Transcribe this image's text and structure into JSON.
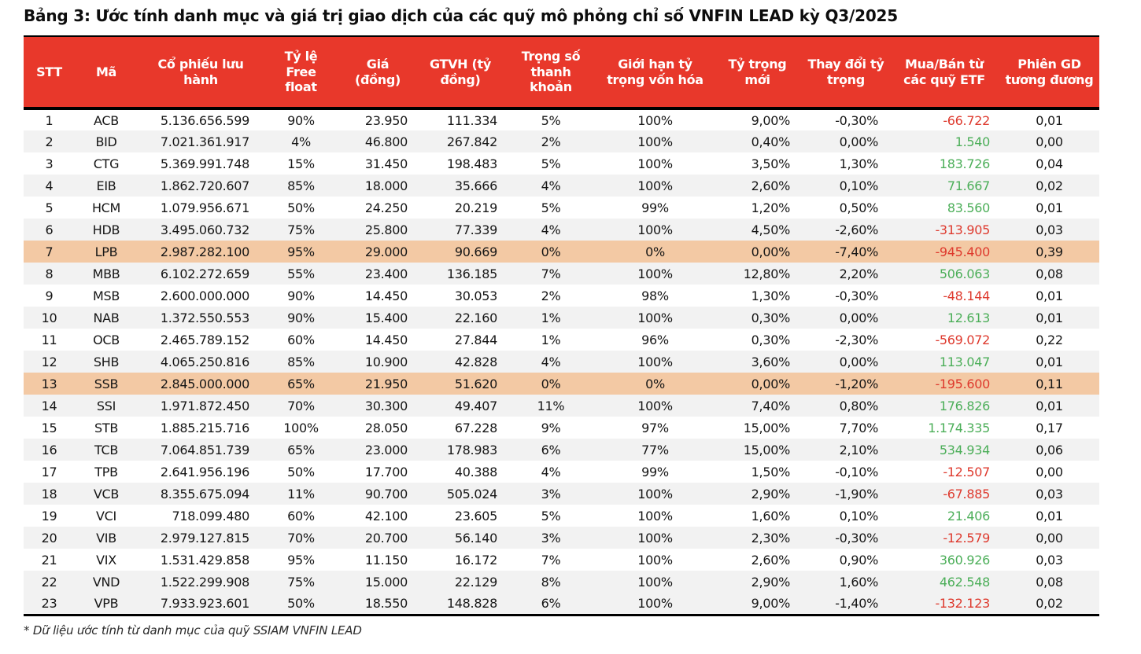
{
  "title": "Bảng 3: Ước tính danh mục và giá trị giao dịch của các quỹ mô phỏng chỉ số VNFIN LEAD kỳ Q3/2025",
  "footnote": "* Dữ liệu ước tính từ danh mục của quỹ SSIAM VNFIN LEAD",
  "colors": {
    "header_bg": "#E8382B",
    "header_text": "#FFFFFF",
    "row_alt_bg": "#F2F2F2",
    "highlight_row_bg": "#F3C9A4",
    "positive_flow": "#4BAE58",
    "negative_flow": "#DE392D",
    "body_text": "#161616"
  },
  "table": {
    "columns": [
      {
        "key": "stt",
        "label": "STT"
      },
      {
        "key": "ma",
        "label": "Mã"
      },
      {
        "key": "shares",
        "label": "Cổ phiếu lưu hành"
      },
      {
        "key": "free_float",
        "label": "Tỷ lệ Free float"
      },
      {
        "key": "price",
        "label": "Giá (đồng)"
      },
      {
        "key": "mcap",
        "label": "GTVH (tỷ đồng)"
      },
      {
        "key": "liquidity_weight",
        "label": "Trọng số thanh khoản"
      },
      {
        "key": "cap_limit",
        "label": "Giới hạn tỷ trọng vốn hóa"
      },
      {
        "key": "new_weight",
        "label": "Tỷ trọng mới"
      },
      {
        "key": "weight_change",
        "label": "Thay đổi tỷ trọng"
      },
      {
        "key": "etf_flow",
        "label": "Mua/Bán từ các quỹ ETF"
      },
      {
        "key": "sessions",
        "label": "Phiên GD tương đương"
      }
    ],
    "highlight_stt": [
      "7",
      "13"
    ],
    "rows": [
      [
        "1",
        "ACB",
        "5.136.656.599",
        "90%",
        "23.950",
        "111.334",
        "5%",
        "100%",
        "9,00%",
        "-0,30%",
        "-66.722",
        "0,01"
      ],
      [
        "2",
        "BID",
        "7.021.361.917",
        "4%",
        "46.800",
        "267.842",
        "2%",
        "100%",
        "0,40%",
        "0,00%",
        "1.540",
        "0,00"
      ],
      [
        "3",
        "CTG",
        "5.369.991.748",
        "15%",
        "31.450",
        "198.483",
        "5%",
        "100%",
        "3,50%",
        "1,30%",
        "183.726",
        "0,04"
      ],
      [
        "4",
        "EIB",
        "1.862.720.607",
        "85%",
        "18.000",
        "35.666",
        "4%",
        "100%",
        "2,60%",
        "0,10%",
        "71.667",
        "0,02"
      ],
      [
        "5",
        "HCM",
        "1.079.956.671",
        "50%",
        "24.250",
        "20.219",
        "5%",
        "99%",
        "1,20%",
        "0,50%",
        "83.560",
        "0,01"
      ],
      [
        "6",
        "HDB",
        "3.495.060.732",
        "75%",
        "25.800",
        "77.339",
        "4%",
        "100%",
        "4,50%",
        "-2,60%",
        "-313.905",
        "0,03"
      ],
      [
        "7",
        "LPB",
        "2.987.282.100",
        "95%",
        "29.000",
        "90.669",
        "0%",
        "0%",
        "0,00%",
        "-7,40%",
        "-945.400",
        "0,39"
      ],
      [
        "8",
        "MBB",
        "6.102.272.659",
        "55%",
        "23.400",
        "136.185",
        "7%",
        "100%",
        "12,80%",
        "2,20%",
        "506.063",
        "0,08"
      ],
      [
        "9",
        "MSB",
        "2.600.000.000",
        "90%",
        "14.450",
        "30.053",
        "2%",
        "98%",
        "1,30%",
        "-0,30%",
        "-48.144",
        "0,01"
      ],
      [
        "10",
        "NAB",
        "1.372.550.553",
        "90%",
        "15.400",
        "22.160",
        "1%",
        "100%",
        "0,30%",
        "0,00%",
        "12.613",
        "0,01"
      ],
      [
        "11",
        "OCB",
        "2.465.789.152",
        "60%",
        "14.450",
        "27.844",
        "1%",
        "96%",
        "0,30%",
        "-2,30%",
        "-569.072",
        "0,22"
      ],
      [
        "12",
        "SHB",
        "4.065.250.816",
        "85%",
        "10.900",
        "42.828",
        "4%",
        "100%",
        "3,60%",
        "0,00%",
        "113.047",
        "0,01"
      ],
      [
        "13",
        "SSB",
        "2.845.000.000",
        "65%",
        "21.950",
        "51.620",
        "0%",
        "0%",
        "0,00%",
        "-1,20%",
        "-195.600",
        "0,11"
      ],
      [
        "14",
        "SSI",
        "1.971.872.450",
        "70%",
        "30.300",
        "49.407",
        "11%",
        "100%",
        "7,40%",
        "0,80%",
        "176.826",
        "0,01"
      ],
      [
        "15",
        "STB",
        "1.885.215.716",
        "100%",
        "28.050",
        "67.228",
        "9%",
        "97%",
        "15,00%",
        "7,70%",
        "1.174.335",
        "0,17"
      ],
      [
        "16",
        "TCB",
        "7.064.851.739",
        "65%",
        "23.000",
        "178.983",
        "6%",
        "77%",
        "15,00%",
        "2,10%",
        "534.934",
        "0,06"
      ],
      [
        "17",
        "TPB",
        "2.641.956.196",
        "50%",
        "17.700",
        "40.388",
        "4%",
        "99%",
        "1,50%",
        "-0,10%",
        "-12.507",
        "0,00"
      ],
      [
        "18",
        "VCB",
        "8.355.675.094",
        "11%",
        "90.700",
        "505.024",
        "3%",
        "100%",
        "2,90%",
        "-1,90%",
        "-67.885",
        "0,03"
      ],
      [
        "19",
        "VCI",
        "718.099.480",
        "60%",
        "42.100",
        "23.605",
        "5%",
        "100%",
        "1,60%",
        "0,10%",
        "21.406",
        "0,01"
      ],
      [
        "20",
        "VIB",
        "2.979.127.815",
        "70%",
        "20.700",
        "56.140",
        "3%",
        "100%",
        "2,30%",
        "-0,30%",
        "-12.579",
        "0,00"
      ],
      [
        "21",
        "VIX",
        "1.531.429.858",
        "95%",
        "11.150",
        "16.172",
        "7%",
        "100%",
        "2,60%",
        "0,90%",
        "360.926",
        "0,03"
      ],
      [
        "22",
        "VND",
        "1.522.299.908",
        "75%",
        "15.000",
        "22.129",
        "8%",
        "100%",
        "2,90%",
        "1,60%",
        "462.548",
        "0,08"
      ],
      [
        "23",
        "VPB",
        "7.933.923.601",
        "50%",
        "18.550",
        "148.828",
        "6%",
        "100%",
        "9,00%",
        "-1,40%",
        "-132.123",
        "0,02"
      ]
    ]
  }
}
